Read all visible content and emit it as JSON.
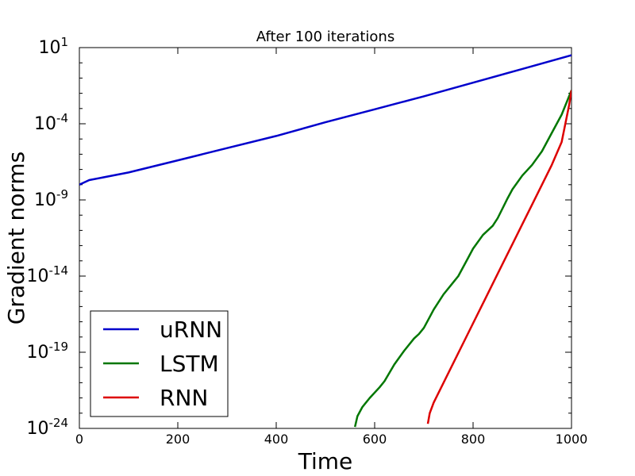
{
  "chart_data": {
    "type": "line",
    "title": "After 100 iterations",
    "xlabel": "Time",
    "ylabel": "Gradient norms",
    "xlim": [
      0,
      1000
    ],
    "ylim_exponent": [
      -24,
      1
    ],
    "yscale": "log",
    "x_ticks": [
      "0",
      "200",
      "400",
      "600",
      "800",
      "1000"
    ],
    "y_ticks": [
      {
        "base": "10",
        "exp": "1",
        "value_exp": 1
      },
      {
        "base": "10",
        "exp": "-4",
        "value_exp": -4
      },
      {
        "base": "10",
        "exp": "-9",
        "value_exp": -9
      },
      {
        "base": "10",
        "exp": "-14",
        "value_exp": -14
      },
      {
        "base": "10",
        "exp": "-19",
        "value_exp": -19
      },
      {
        "base": "10",
        "exp": "-24",
        "value_exp": -24
      }
    ],
    "grid": false,
    "legend_position": "lower-left",
    "series": [
      {
        "name": "uRNN",
        "color": "#0000cc",
        "x": [
          0,
          20,
          100,
          200,
          300,
          400,
          500,
          600,
          700,
          800,
          900,
          1000
        ],
        "y_exp": [
          -8,
          -7.7,
          -7.2,
          -6.4,
          -5.6,
          -4.8,
          -3.9,
          -3.05,
          -2.2,
          -1.3,
          -0.4,
          0.5
        ]
      },
      {
        "name": "LSTM",
        "color": "#007700",
        "x": [
          560,
          565,
          575,
          590,
          610,
          620,
          640,
          660,
          680,
          690,
          700,
          710,
          720,
          740,
          760,
          770,
          790,
          800,
          820,
          840,
          850,
          870,
          880,
          900,
          920,
          940,
          960,
          980,
          1000
        ],
        "y_exp": [
          -23.9,
          -23.2,
          -22.6,
          -22.0,
          -21.3,
          -20.9,
          -19.8,
          -18.9,
          -18.1,
          -17.8,
          -17.4,
          -16.8,
          -16.2,
          -15.2,
          -14.4,
          -14.0,
          -12.8,
          -12.2,
          -11.3,
          -10.7,
          -10.2,
          -8.9,
          -8.3,
          -7.4,
          -6.7,
          -5.8,
          -4.6,
          -3.4,
          -1.8
        ]
      },
      {
        "name": "RNN",
        "color": "#dd0000",
        "x": [
          708,
          712,
          720,
          740,
          760,
          780,
          800,
          820,
          840,
          860,
          880,
          900,
          920,
          940,
          960,
          980,
          995,
          1000
        ],
        "y_exp": [
          -23.7,
          -23.0,
          -22.3,
          -21.0,
          -19.7,
          -18.4,
          -17.1,
          -15.8,
          -14.5,
          -13.2,
          -11.9,
          -10.6,
          -9.3,
          -8.0,
          -6.7,
          -5.2,
          -2.8,
          -1.8
        ]
      }
    ]
  }
}
